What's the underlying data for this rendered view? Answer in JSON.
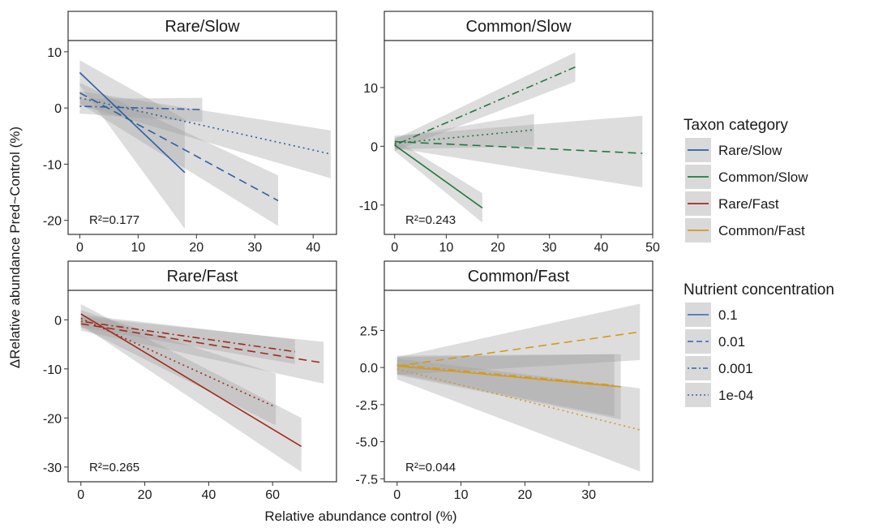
{
  "chart_data": {
    "type": "line",
    "xlabel": "Relative abundance control (%)",
    "ylabel": "ΔRelative abundance Pred~Control (%)",
    "legend": {
      "placement": "right",
      "groups": [
        {
          "title": "Taxon category",
          "items": [
            {
              "label": "Rare/Slow",
              "color": "#2b5fa3",
              "dash": "solid"
            },
            {
              "label": "Common/Slow",
              "color": "#1e7a3c",
              "dash": "solid"
            },
            {
              "label": "Rare/Fast",
              "color": "#a32a1c",
              "dash": "solid"
            },
            {
              "label": "Common/Fast",
              "color": "#d49a1c",
              "dash": "solid"
            }
          ]
        },
        {
          "title": "Nutrient concentration",
          "items": [
            {
              "label": "0.1",
              "color": "#4a72c0",
              "dash": "solid"
            },
            {
              "label": "0.01",
              "color": "#4a72c0",
              "dash": "dashed"
            },
            {
              "label": "0.001",
              "color": "#4a72c0",
              "dash": "dotdash"
            },
            {
              "label": "1e-04",
              "color": "#4a72c0",
              "dash": "dotted"
            }
          ]
        }
      ]
    },
    "panels": [
      {
        "title": "Rare/Slow",
        "color": "#2b5fa3",
        "xlim": [
          -2,
          44
        ],
        "ylim": [
          -22.5,
          12
        ],
        "xticks": [
          0,
          10,
          20,
          30,
          40
        ],
        "xtick_labels": [
          "0",
          "10",
          "20",
          "30",
          "40"
        ],
        "yticks": [
          10,
          0,
          -10,
          -20
        ],
        "ytick_labels": [
          "10",
          "0",
          "-10",
          "-20"
        ],
        "r2": "R²=0.177",
        "series": [
          {
            "concentration": "0.1",
            "dash": "solid",
            "x": [
              0,
              18
            ],
            "y": [
              6.3,
              -11.5
            ],
            "ribbon": {
              "lo": [
                4,
                -21.5
              ],
              "hi": [
                8.5,
                -2
              ]
            }
          },
          {
            "concentration": "0.01",
            "dash": "dashed",
            "x": [
              0,
              34
            ],
            "y": [
              2.7,
              -16.5
            ],
            "ribbon": {
              "lo": [
                0.8,
                -21
              ],
              "hi": [
                4.5,
                -12
              ]
            }
          },
          {
            "concentration": "0.001",
            "dash": "dotdash",
            "x": [
              0,
              21
            ],
            "y": [
              0.3,
              -0.3
            ],
            "ribbon": {
              "lo": [
                -1,
                -2.5
              ],
              "hi": [
                1.6,
                1.8
              ]
            }
          },
          {
            "concentration": "1e-04",
            "dash": "dotted",
            "x": [
              0,
              43
            ],
            "y": [
              1.8,
              -8.2
            ],
            "ribbon": {
              "lo": [
                0.5,
                -12.5
              ],
              "hi": [
                3,
                -4
              ]
            }
          }
        ]
      },
      {
        "title": "Common/Slow",
        "color": "#1e7a3c",
        "xlim": [
          -2,
          50
        ],
        "ylim": [
          -15,
          18
        ],
        "xticks": [
          0,
          10,
          20,
          30,
          40,
          50
        ],
        "xtick_labels": [
          "0",
          "10",
          "20",
          "30",
          "40",
          "50"
        ],
        "yticks": [
          10,
          0,
          -10
        ],
        "ytick_labels": [
          "10",
          "0",
          "-10"
        ],
        "r2": "R²=0.243",
        "series": [
          {
            "concentration": "0.1",
            "dash": "solid",
            "x": [
              0,
              17
            ],
            "y": [
              0.2,
              -10.5
            ],
            "ribbon": {
              "lo": [
                -0.8,
                -13
              ],
              "hi": [
                1.2,
                -8
              ]
            }
          },
          {
            "concentration": "0.01",
            "dash": "dashed",
            "x": [
              0,
              48
            ],
            "y": [
              0.8,
              -1.2
            ],
            "ribbon": {
              "lo": [
                -0.3,
                -7
              ],
              "hi": [
                1.8,
                5.2
              ]
            }
          },
          {
            "concentration": "0.001",
            "dash": "dotdash",
            "x": [
              0,
              35
            ],
            "y": [
              0.2,
              13.5
            ],
            "ribbon": {
              "lo": [
                -0.8,
                11
              ],
              "hi": [
                1.2,
                16
              ]
            }
          },
          {
            "concentration": "1e-04",
            "dash": "dotted",
            "x": [
              0,
              27
            ],
            "y": [
              0.5,
              2.8
            ],
            "ribbon": {
              "lo": [
                -0.5,
                0
              ],
              "hi": [
                1.5,
                5.5
              ]
            }
          }
        ]
      },
      {
        "title": "Rare/Fast",
        "color": "#a32a1c",
        "xlim": [
          -4,
          80
        ],
        "ylim": [
          -33,
          6
        ],
        "xticks": [
          0,
          20,
          40,
          60
        ],
        "xtick_labels": [
          "0",
          "20",
          "40",
          "60"
        ],
        "yticks": [
          0,
          -10,
          -20,
          -30
        ],
        "ytick_labels": [
          "0",
          "-10",
          "-20",
          "-30"
        ],
        "r2": "R²=0.265",
        "series": [
          {
            "concentration": "0.1",
            "dash": "solid",
            "x": [
              0,
              69
            ],
            "y": [
              1.2,
              -25.8
            ],
            "ribbon": {
              "lo": [
                -1,
                -31
              ],
              "hi": [
                3.2,
                -20
              ]
            }
          },
          {
            "concentration": "0.01",
            "dash": "dashed",
            "x": [
              0,
              76
            ],
            "y": [
              -0.8,
              -8.8
            ],
            "ribbon": {
              "lo": [
                -2.2,
                -13
              ],
              "hi": [
                0.6,
                -4.5
              ]
            }
          },
          {
            "concentration": "0.001",
            "dash": "dotdash",
            "x": [
              0,
              67
            ],
            "y": [
              -0.3,
              -6.5
            ],
            "ribbon": {
              "lo": [
                -1.5,
                -9
              ],
              "hi": [
                1,
                -4
              ]
            }
          },
          {
            "concentration": "1e-04",
            "dash": "dotted",
            "x": [
              0,
              61
            ],
            "y": [
              0.3,
              -17.8
            ],
            "ribbon": {
              "lo": [
                -1.5,
                -21.5
              ],
              "hi": [
                2,
                -11
              ]
            }
          }
        ]
      },
      {
        "title": "Common/Fast",
        "color": "#d49a1c",
        "xlim": [
          -2,
          40
        ],
        "ylim": [
          -7.7,
          5.2
        ],
        "xticks": [
          0,
          10,
          20,
          30
        ],
        "xtick_labels": [
          "0",
          "10",
          "20",
          "30"
        ],
        "yticks": [
          2.5,
          0,
          -2.5,
          -5,
          -7.5
        ],
        "ytick_labels": [
          "2.5",
          "0.0",
          "-2.5",
          "-5.0",
          "-7.5"
        ],
        "r2": "R²=0.044",
        "series": [
          {
            "concentration": "0.1",
            "dash": "solid",
            "x": [
              0,
              35
            ],
            "y": [
              0.1,
              -1.3
            ],
            "ribbon": {
              "lo": [
                -0.5,
                -3.5
              ],
              "hi": [
                0.7,
                0.9
              ]
            }
          },
          {
            "concentration": "0.01",
            "dash": "dashed",
            "x": [
              0,
              38
            ],
            "y": [
              0.1,
              2.4
            ],
            "ribbon": {
              "lo": [
                -0.5,
                0.5
              ],
              "hi": [
                0.7,
                4.3
              ]
            }
          },
          {
            "concentration": "0.001",
            "dash": "dotdash",
            "x": [
              0,
              34
            ],
            "y": [
              0.2,
              -1.2
            ],
            "ribbon": {
              "lo": [
                -0.4,
                -3.3
              ],
              "hi": [
                0.8,
                0.9
              ]
            }
          },
          {
            "concentration": "1e-04",
            "dash": "dotted",
            "x": [
              0,
              38
            ],
            "y": [
              -0.1,
              -4.2
            ],
            "ribbon": {
              "lo": [
                -0.8,
                -7
              ],
              "hi": [
                0.6,
                -1.4
              ]
            }
          }
        ]
      }
    ]
  }
}
